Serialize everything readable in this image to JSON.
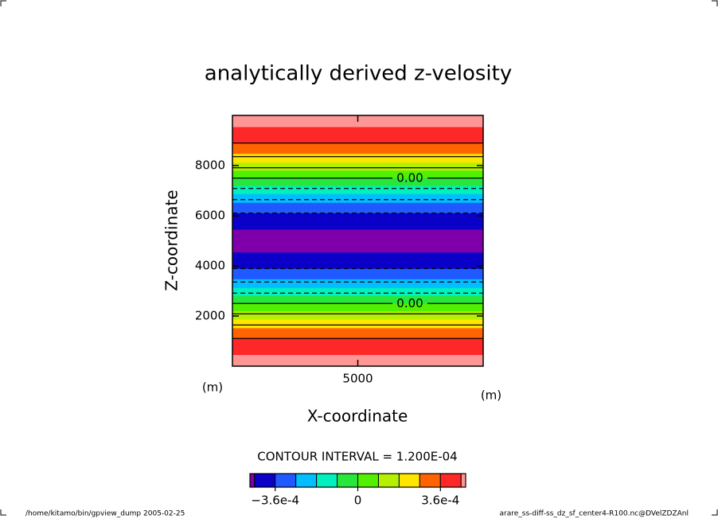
{
  "chart_data": {
    "type": "contour",
    "title": "analytically derived z-velosity",
    "x_label": "X-coordinate",
    "y_label": "Z-coordinate",
    "x_unit": "(m)",
    "y_unit": "(m)",
    "xlim": [
      0,
      10000
    ],
    "xticks": [
      5000
    ],
    "ylim": [
      0,
      10000
    ],
    "yticks": [
      2000,
      4000,
      6000,
      8000
    ],
    "z": [
      0,
      250,
      500,
      750,
      1000,
      1250,
      1500,
      1750,
      2000,
      2250,
      2500,
      2750,
      3000,
      3250,
      3500,
      3750,
      4000,
      4250,
      4500,
      4750,
      5000,
      5250,
      5500,
      5750,
      6000,
      6250,
      6500,
      6750,
      7000,
      7250,
      7500,
      7750,
      8000,
      8250,
      8500,
      8750,
      9000,
      9250,
      9500,
      9750,
      10000
    ],
    "values": [
      0.00047,
      0.000464,
      0.000447,
      0.000419,
      0.00038,
      0.000332,
      0.000276,
      0.000213,
      0.000145,
      7.35e-05,
      0,
      -7.35e-05,
      -0.000145,
      -0.000213,
      -0.000276,
      -0.000332,
      -0.00038,
      -0.000419,
      -0.000447,
      -0.000464,
      -0.00047,
      -0.000464,
      -0.000447,
      -0.000419,
      -0.00038,
      -0.000332,
      -0.000276,
      -0.000213,
      -0.000145,
      -7.35e-05,
      0,
      7.35e-05,
      0.000145,
      0.000213,
      0.000276,
      0.000332,
      0.00038,
      0.000419,
      0.000447,
      0.000464,
      0.00047
    ],
    "contour_levels": [
      -0.00036,
      -0.00024,
      -0.00012,
      0,
      0.00012,
      0.00024,
      0.00036
    ],
    "contour_label": {
      "value": 0,
      "label": "0.00"
    },
    "contour_interval_text": "CONTOUR INTERVAL = 1.200E-04",
    "color_levels": [
      -0.00045,
      -0.00036,
      -0.00027,
      -0.00018,
      -9e-05,
      0,
      9e-05,
      0.00018,
      0.00027,
      0.00036,
      0.00045
    ],
    "colors": [
      "#7f00aa",
      "#0a00c8",
      "#1e5aff",
      "#00beff",
      "#00f0be",
      "#28e63c",
      "#50f000",
      "#b4f000",
      "#ffe600",
      "#ff6400",
      "#ff2828",
      "#ff9696"
    ],
    "colorbar_lim": [
      -0.00047,
      0.00047
    ],
    "colorbar_ticks": [
      {
        "value": -0.00036,
        "label": "−3.6e-4"
      },
      0,
      {
        "value": 0.00036,
        "label": "3.6e-4"
      }
    ]
  },
  "footer": {
    "left": "/home/kitamo/bin/gpview_dump  2005-02-25",
    "right": "arare_ss-diff-ss_dz_sf_center4-R100.nc@DVelZDZAnl"
  }
}
